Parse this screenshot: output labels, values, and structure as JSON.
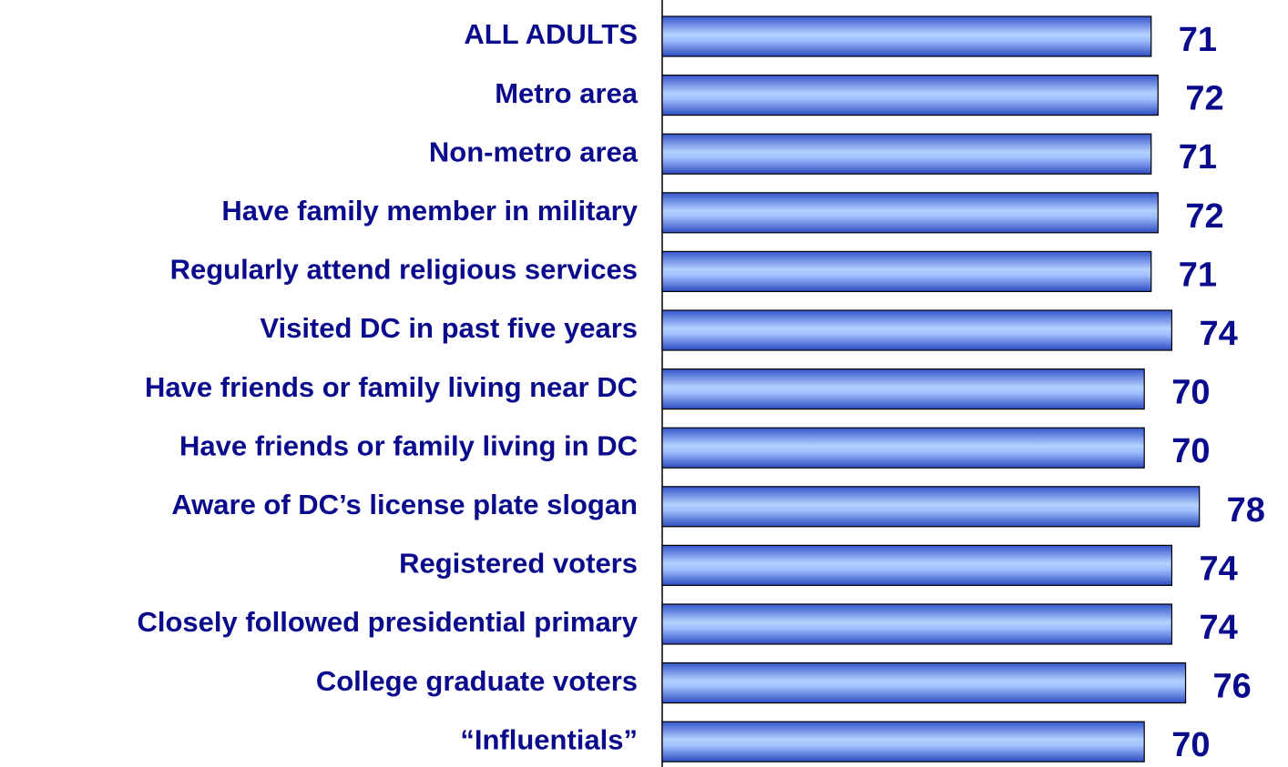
{
  "chart_data": {
    "type": "hbar",
    "categories": [
      "ALL ADULTS",
      "Metro area",
      "Non-metro area",
      "Have family member in military",
      "Regularly attend religious services",
      "Visited DC in past five years",
      "Have friends or family living near DC",
      "Have friends or family living in DC",
      "Aware of DC’s license plate slogan",
      "Registered voters",
      "Closely followed presidential primary",
      "College graduate voters",
      "“Influentials”"
    ],
    "values": [
      71,
      72,
      71,
      72,
      71,
      74,
      70,
      70,
      78,
      74,
      74,
      76,
      70
    ],
    "xlim": [
      0,
      100
    ],
    "color": "#6f95f0"
  }
}
